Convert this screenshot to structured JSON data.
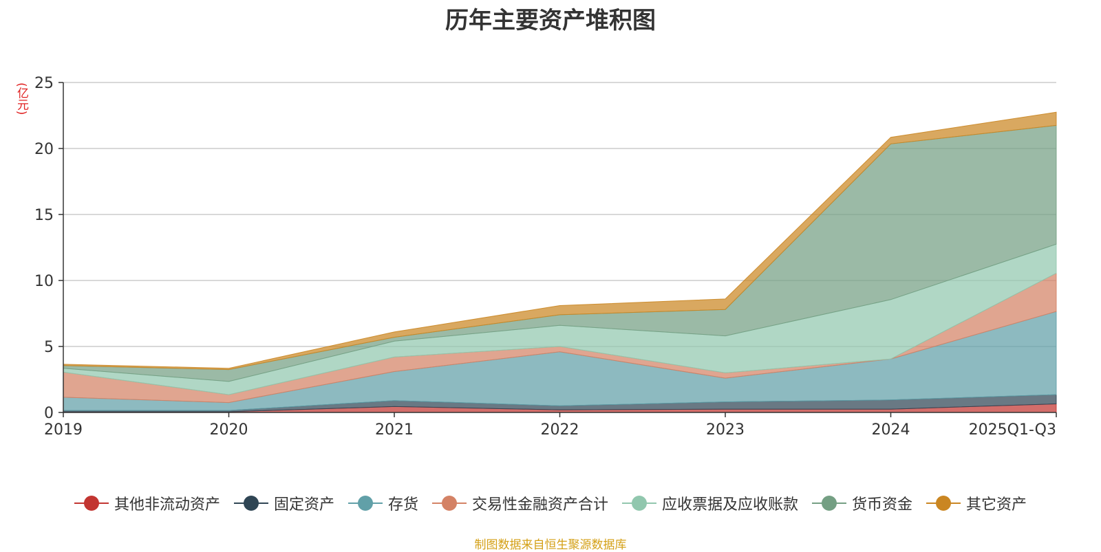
{
  "chart_data": {
    "type": "area",
    "stacked": true,
    "title": "历年主要资产堆积图",
    "unit_label": "(亿元)",
    "categories": [
      "2019",
      "2020",
      "2021",
      "2022",
      "2023",
      "2024",
      "2025Q1-Q3"
    ],
    "ylim": [
      0,
      25
    ],
    "yticks": [
      0,
      5,
      10,
      15,
      20,
      25
    ],
    "grid": true,
    "legend_position": "bottom",
    "series": [
      {
        "name": "其他非流动资产",
        "color": "#c23531",
        "values": [
          0.05,
          0.05,
          0.45,
          0.2,
          0.25,
          0.25,
          0.65
        ]
      },
      {
        "name": "固定资产",
        "color": "#2f4554",
        "values": [
          0.1,
          0.1,
          0.45,
          0.3,
          0.55,
          0.7,
          0.7
        ]
      },
      {
        "name": "存货",
        "color": "#61a0a8",
        "values": [
          1.0,
          0.6,
          2.2,
          4.1,
          1.8,
          3.1,
          6.3
        ]
      },
      {
        "name": "交易性金融资产合计",
        "color": "#d48265",
        "values": [
          1.9,
          0.6,
          1.1,
          0.4,
          0.4,
          0.0,
          2.9
        ]
      },
      {
        "name": "应收票据及应收账款",
        "color": "#91c7ae",
        "values": [
          0.3,
          1.0,
          1.2,
          1.6,
          2.8,
          4.5,
          2.2
        ]
      },
      {
        "name": "货币资金",
        "color": "#749f83",
        "values": [
          0.2,
          0.9,
          0.3,
          0.8,
          2.0,
          11.8,
          9.0
        ]
      },
      {
        "name": "其它资产",
        "color": "#ca8622",
        "values": [
          0.1,
          0.1,
          0.4,
          0.7,
          0.8,
          0.5,
          1.0
        ]
      }
    ]
  },
  "footer": {
    "source": "制图数据来自恒生聚源数据库"
  }
}
